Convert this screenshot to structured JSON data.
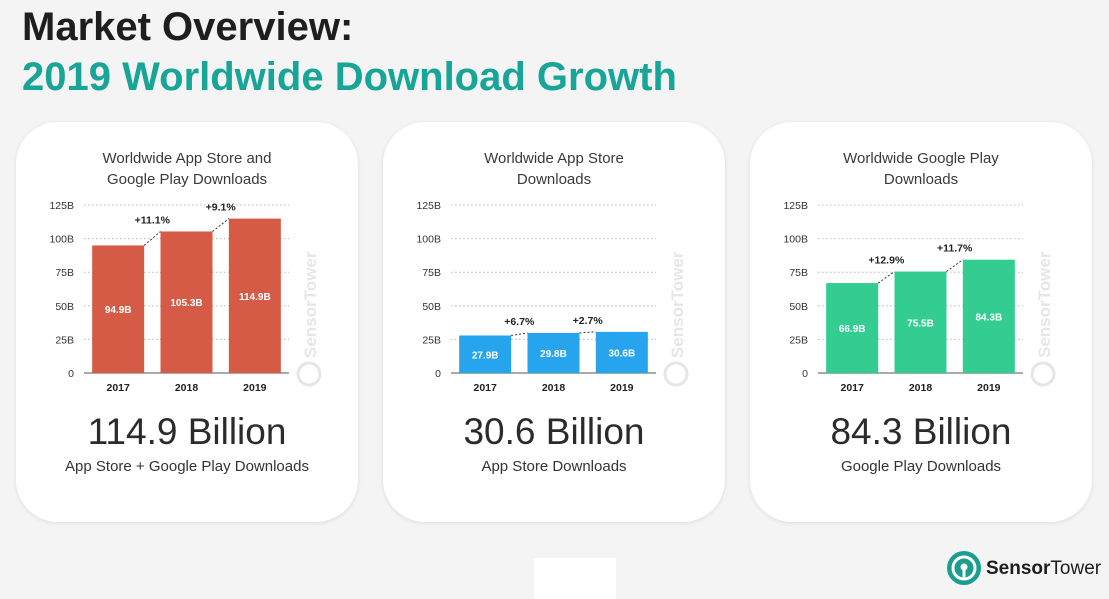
{
  "header": {
    "title_line1": "Market Overview:",
    "title_line2": "2019 Worldwide Download Growth"
  },
  "colors": {
    "title_accent": "#16a596",
    "combined": "#d65b46",
    "app_store": "#26a5ee",
    "google_play": "#33cc91"
  },
  "cards": [
    {
      "title": "Worldwide App Store and\nGoogle Play Downloads",
      "headline": "114.9 Billion",
      "subtitle": "App Store + Google Play Downloads",
      "watermark": "SensorTower"
    },
    {
      "title": "Worldwide App Store\nDownloads",
      "headline": "30.6 Billion",
      "subtitle": "App Store Downloads",
      "watermark": "SensorTower"
    },
    {
      "title": "Worldwide Google Play\nDownloads",
      "headline": "84.3 Billion",
      "subtitle": "Google Play Downloads",
      "watermark": "SensorTower"
    }
  ],
  "chart_data": [
    {
      "type": "bar",
      "title": "Worldwide App Store and Google Play Downloads",
      "categories": [
        "2017",
        "2018",
        "2019"
      ],
      "values": [
        94.9,
        105.3,
        114.9
      ],
      "value_labels": [
        "94.9B",
        "105.3B",
        "114.9B"
      ],
      "growth_labels": [
        "+11.1%",
        "+9.1%"
      ],
      "ylim": [
        0,
        125
      ],
      "yticks": [
        "0",
        "25B",
        "50B",
        "75B",
        "100B",
        "125B"
      ],
      "ytick_values": [
        0,
        25,
        50,
        75,
        100,
        125
      ],
      "grid": true,
      "color": "#d65b46"
    },
    {
      "type": "bar",
      "title": "Worldwide App Store Downloads",
      "categories": [
        "2017",
        "2018",
        "2019"
      ],
      "values": [
        27.9,
        29.8,
        30.6
      ],
      "value_labels": [
        "27.9B",
        "29.8B",
        "30.6B"
      ],
      "growth_labels": [
        "+6.7%",
        "+2.7%"
      ],
      "ylim": [
        0,
        125
      ],
      "yticks": [
        "0",
        "25B",
        "50B",
        "75B",
        "100B",
        "125B"
      ],
      "ytick_values": [
        0,
        25,
        50,
        75,
        100,
        125
      ],
      "grid": true,
      "color": "#26a5ee"
    },
    {
      "type": "bar",
      "title": "Worldwide Google Play Downloads",
      "categories": [
        "2017",
        "2018",
        "2019"
      ],
      "values": [
        66.9,
        75.5,
        84.3
      ],
      "value_labels": [
        "66.9B",
        "75.5B",
        "84.3B"
      ],
      "growth_labels": [
        "+12.9%",
        "+11.7%"
      ],
      "ylim": [
        0,
        125
      ],
      "yticks": [
        "0",
        "25B",
        "50B",
        "75B",
        "100B",
        "125B"
      ],
      "ytick_values": [
        0,
        25,
        50,
        75,
        100,
        125
      ],
      "grid": true,
      "color": "#33cc91"
    }
  ],
  "brand": {
    "logo_icon": "sensor-tower-logo-icon",
    "name_part1": "Sensor",
    "name_part2": "Tower"
  }
}
